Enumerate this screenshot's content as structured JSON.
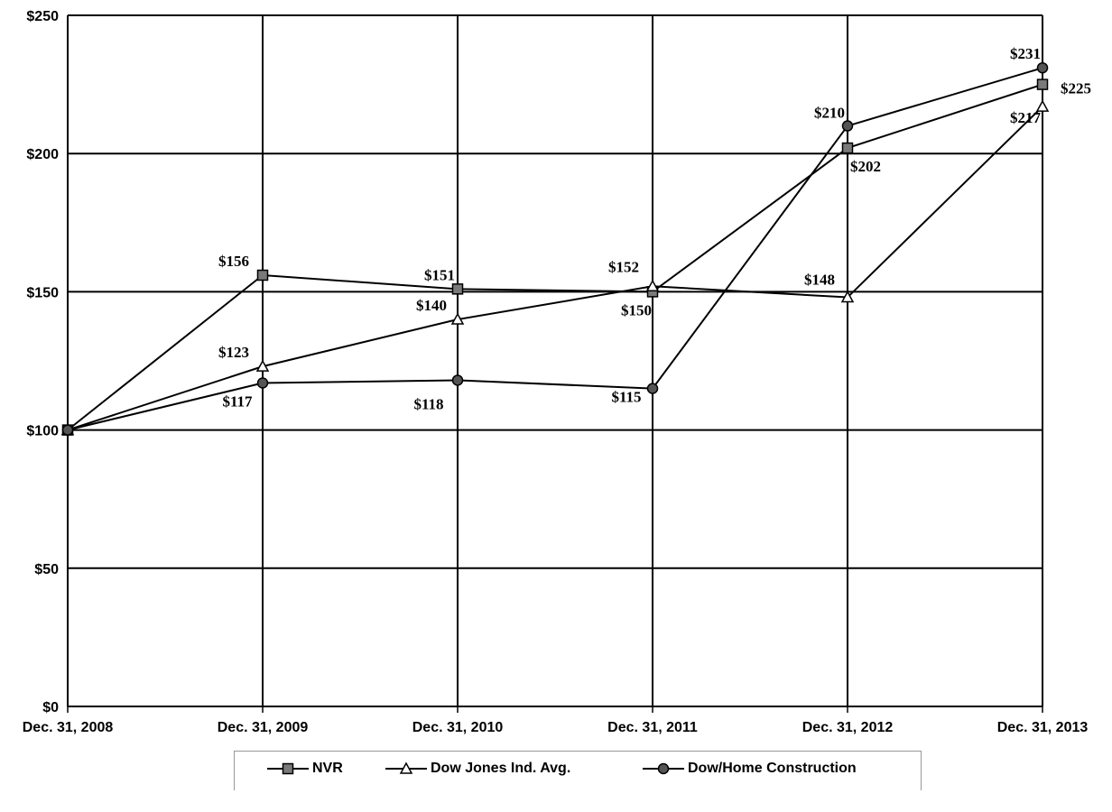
{
  "chart_data": {
    "type": "line",
    "categories": [
      "Dec. 31, 2008",
      "Dec. 31, 2009",
      "Dec. 31, 2010",
      "Dec. 31, 2011",
      "Dec. 31, 2012",
      "Dec. 31, 2013"
    ],
    "ylim": [
      0,
      250
    ],
    "yticks": [
      0,
      50,
      100,
      150,
      200,
      250
    ],
    "ytick_labels": [
      "$0",
      "$50",
      "$100",
      "$150",
      "$200",
      "$250"
    ],
    "grid": true,
    "legend_position": "bottom",
    "series": [
      {
        "name": "NVR",
        "marker": "square",
        "values": [
          100,
          156,
          151,
          150,
          202,
          225
        ],
        "labels": [
          "",
          "$156",
          "$151",
          "$150",
          "$202",
          "$225"
        ]
      },
      {
        "name": "Dow Jones Ind. Avg.",
        "marker": "triangle",
        "values": [
          100,
          123,
          140,
          152,
          148,
          217
        ],
        "labels": [
          "",
          "$123",
          "$140",
          "$152",
          "$148",
          "$217"
        ]
      },
      {
        "name": "Dow/Home Construction",
        "marker": "circle",
        "values": [
          100,
          117,
          118,
          115,
          210,
          231
        ],
        "labels": [
          "",
          "$117",
          "$118",
          "$115",
          "$210",
          "$231"
        ]
      }
    ]
  },
  "legend": {
    "items": [
      "NVR",
      "Dow Jones Ind. Avg.",
      "Dow/Home Construction"
    ]
  }
}
